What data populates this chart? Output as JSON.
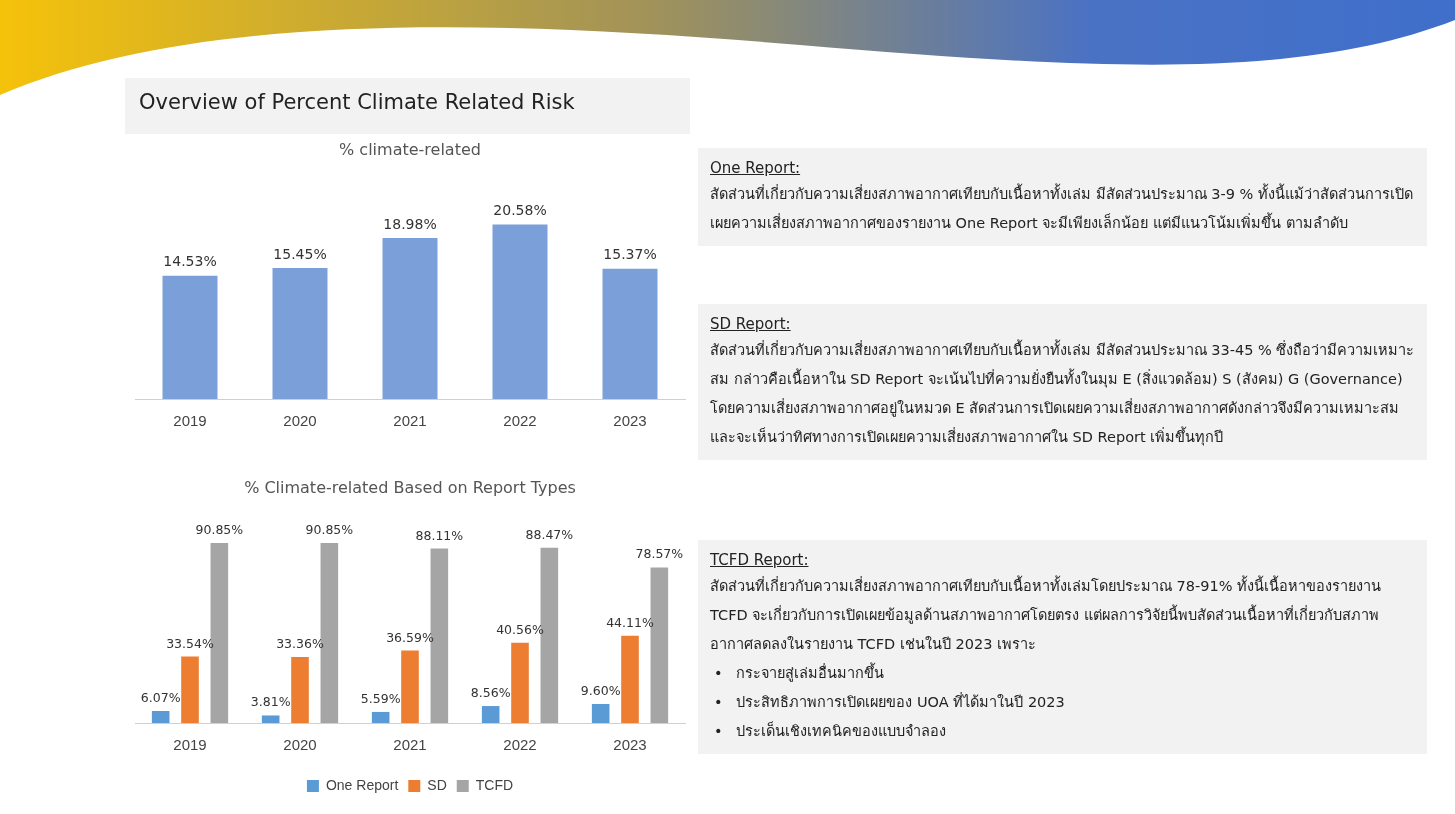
{
  "chart_data": [
    {
      "type": "bar",
      "title": "% climate-related",
      "annotations": [
        "Overview of Percent Climate Related Risk"
      ],
      "categories": [
        "2019",
        "2020",
        "2021",
        "2022",
        "2023"
      ],
      "values": [
        14.53,
        15.45,
        18.98,
        20.58,
        15.37
      ],
      "value_labels": [
        "14.53%",
        "15.45%",
        "18.98%",
        "20.58%",
        "15.37%"
      ],
      "color": "#7b9fd8",
      "grid": false,
      "legend": false,
      "tick_labels": "x"
    },
    {
      "type": "bar",
      "title": "% Climate-related Based on Report Types",
      "categories": [
        "2019",
        "2020",
        "2021",
        "2022",
        "2023"
      ],
      "series": [
        {
          "name": "One Report",
          "color": "#5b9bd5",
          "values": [
            6.07,
            3.81,
            5.59,
            8.56,
            9.6
          ],
          "value_labels": [
            "6.07%",
            "3.81%",
            "5.59%",
            "8.56%",
            "9.60%"
          ]
        },
        {
          "name": "SD",
          "color": "#ed7d31",
          "values": [
            33.54,
            33.36,
            36.59,
            40.56,
            44.11
          ],
          "value_labels": [
            "33.54%",
            "33.36%",
            "36.59%",
            "40.56%",
            "44.11%"
          ]
        },
        {
          "name": "TCFD",
          "color": "#a5a5a5",
          "values": [
            90.85,
            90.85,
            88.11,
            88.47,
            78.57
          ],
          "value_labels": [
            "90.85%",
            "90.85%",
            "88.11%",
            "88.47%",
            "78.57%"
          ]
        }
      ],
      "grid": false,
      "legend": "bottom",
      "tick_labels": "x"
    },
    {
      "type": "other",
      "title": "One Report:",
      "annotations": [
        "สัดส่วนที่เกี่ยวกับความเสี่ยงสภาพอากาศเทียบกับเนื้อหาทั้งเล่ม  มีสัดส่วนประมาณ 3-9 %  ทั้งนี้แม้ว่าสัดส่วนการเปิดเผยความเสี่ยงสภาพอากาศของรายงาน One Report  จะมีเพียงเล็กน้อย แต่มีแนวโน้มเพิ่มขึ้น ตามลำดับ"
      ]
    },
    {
      "type": "other",
      "title": "SD Report:",
      "annotations": [
        "สัดส่วนที่เกี่ยวกับความเสี่ยงสภาพอากาศเทียบกับเนื้อหาทั้งเล่ม  มีสัดส่วนประมาณ 33-45 % ซึ่งถือว่ามีความเหมาะสม กล่าวคือเนื้อหาใน SD Report จะเน้นไปที่ความยั่งยืนทั้งในมุม E (สิ่งแวดล้อม) S  (สังคม) G  (Governance) โดยความเสี่ยงสภาพอากาศอยู่ในหมวด E  สัดส่วนการเปิดเผยความเสี่ยงสภาพอากาศดังกล่าวจึงมีความเหมาะสม และจะเห็นว่าทิศทางการเปิดเผยความเสี่ยงสภาพอากาศใน SD Report เพิ่มขึ้นทุกปี"
      ]
    },
    {
      "type": "other",
      "title": "TCFD Report:",
      "annotations": [
        "สัดส่วนที่เกี่ยวกับความเสี่ยงสภาพอากาศเทียบกับเนื้อหาทั้งเล่มโดยประมาณ 78-91% ทั้งนี้เนื้อหาของรายงาน TCFD    จะเกี่ยวกับการเปิดเผยข้อมูลด้านสภาพอากาศโดยตรง แต่ผลการวิจัยนี้พบสัดส่วนเนื้อหาที่เกี่ยวกับสภาพอากาศลดลงในรายงาน TCFD เช่นในปี 2023 เพราะ",
        "•   กระจายสู่เล่มอื่นมากขึ้น",
        "•   ประสิทธิภาพการเปิดเผยของ UOA ที่ได้มาในปี 2023",
        "•   ประเด็นเชิงเทคนิคของแบบจำลอง"
      ]
    }
  ]
}
